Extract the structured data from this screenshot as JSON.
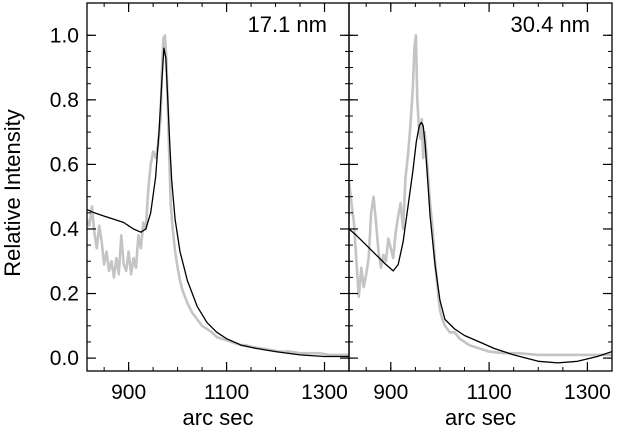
{
  "chart_data": [
    {
      "type": "line",
      "panel_label": "17.1 nm",
      "xlabel": "arc sec",
      "ylabel": "Relative Intensity",
      "xlim": [
        815,
        1350
      ],
      "ylim": [
        -0.04,
        1.1
      ],
      "x_ticks": [
        900,
        1100,
        1300
      ],
      "y_ticks": [
        0.0,
        0.2,
        0.4,
        0.6,
        0.8,
        1.0
      ],
      "y_tick_labels": [
        "0.0",
        "0.2",
        "0.4",
        "0.6",
        "0.8",
        "1.0"
      ],
      "x_tick_labels": [
        "900",
        "1100",
        "1300"
      ],
      "colors": {
        "observed": "#c4c4c4",
        "model": "#000000"
      },
      "series": [
        {
          "role": "observed",
          "x": [
            815,
            820,
            825,
            830,
            835,
            840,
            845,
            850,
            855,
            860,
            865,
            870,
            875,
            880,
            885,
            890,
            895,
            900,
            905,
            910,
            915,
            920,
            925,
            930,
            935,
            940,
            945,
            950,
            955,
            960,
            965,
            968,
            971,
            974,
            977,
            980,
            983,
            986,
            990,
            995,
            1000,
            1005,
            1010,
            1020,
            1030,
            1040,
            1050,
            1060,
            1070,
            1080,
            1090,
            1100,
            1110,
            1120,
            1130,
            1140,
            1150,
            1170,
            1190,
            1210,
            1230,
            1250,
            1270,
            1290,
            1310,
            1330,
            1350
          ],
          "y": [
            0.43,
            0.41,
            0.47,
            0.39,
            0.34,
            0.41,
            0.36,
            0.29,
            0.33,
            0.27,
            0.3,
            0.25,
            0.31,
            0.26,
            0.38,
            0.29,
            0.27,
            0.33,
            0.26,
            0.31,
            0.28,
            0.38,
            0.34,
            0.42,
            0.4,
            0.52,
            0.6,
            0.64,
            0.62,
            0.66,
            0.74,
            0.89,
            0.99,
            1.0,
            0.93,
            0.78,
            0.62,
            0.48,
            0.4,
            0.33,
            0.28,
            0.24,
            0.21,
            0.17,
            0.14,
            0.12,
            0.1,
            0.09,
            0.08,
            0.065,
            0.06,
            0.055,
            0.05,
            0.045,
            0.04,
            0.04,
            0.035,
            0.03,
            0.025,
            0.02,
            0.02,
            0.015,
            0.015,
            0.015,
            0.01,
            0.01,
            0.01
          ]
        },
        {
          "role": "model",
          "x": [
            815,
            830,
            850,
            870,
            890,
            910,
            925,
            935,
            945,
            955,
            962,
            968,
            972,
            976,
            980,
            984,
            988,
            995,
            1005,
            1020,
            1040,
            1060,
            1080,
            1100,
            1130,
            1160,
            1200,
            1250,
            1300,
            1350
          ],
          "y": [
            0.46,
            0.45,
            0.44,
            0.43,
            0.42,
            0.4,
            0.39,
            0.4,
            0.45,
            0.56,
            0.7,
            0.86,
            0.96,
            0.93,
            0.8,
            0.66,
            0.55,
            0.43,
            0.33,
            0.24,
            0.16,
            0.11,
            0.08,
            0.06,
            0.04,
            0.03,
            0.02,
            0.01,
            0.005,
            0.005
          ]
        }
      ]
    },
    {
      "type": "line",
      "panel_label": "30.4 nm",
      "xlabel": "arc sec",
      "ylabel": "",
      "xlim": [
        815,
        1350
      ],
      "ylim": [
        -0.04,
        1.1
      ],
      "x_ticks": [
        900,
        1100,
        1300
      ],
      "y_ticks": [
        0.0,
        0.2,
        0.4,
        0.6,
        0.8,
        1.0
      ],
      "x_tick_labels": [
        "900",
        "1100",
        "1300"
      ],
      "colors": {
        "observed": "#c4c4c4",
        "model": "#000000"
      },
      "series": [
        {
          "role": "observed",
          "x": [
            815,
            820,
            825,
            830,
            835,
            840,
            845,
            850,
            855,
            860,
            865,
            870,
            875,
            880,
            885,
            890,
            895,
            900,
            905,
            910,
            915,
            920,
            925,
            930,
            935,
            940,
            945,
            948,
            951,
            954,
            957,
            960,
            963,
            966,
            969,
            972,
            975,
            980,
            985,
            990,
            995,
            1000,
            1005,
            1010,
            1015,
            1020,
            1030,
            1040,
            1050,
            1060,
            1080,
            1100,
            1130,
            1160,
            1200,
            1250,
            1300,
            1350
          ],
          "y": [
            0.55,
            0.48,
            0.42,
            0.3,
            0.19,
            0.28,
            0.22,
            0.26,
            0.31,
            0.45,
            0.5,
            0.42,
            0.33,
            0.28,
            0.32,
            0.3,
            0.37,
            0.34,
            0.31,
            0.39,
            0.44,
            0.48,
            0.4,
            0.56,
            0.63,
            0.72,
            0.84,
            0.96,
            1.0,
            0.8,
            0.72,
            0.68,
            0.74,
            0.62,
            0.7,
            0.64,
            0.58,
            0.48,
            0.4,
            0.3,
            0.22,
            0.15,
            0.12,
            0.1,
            0.09,
            0.08,
            0.08,
            0.06,
            0.05,
            0.04,
            0.03,
            0.02,
            0.015,
            0.015,
            0.01,
            0.01,
            0.01,
            0.01
          ]
        },
        {
          "role": "model",
          "x": [
            815,
            830,
            850,
            870,
            890,
            905,
            915,
            925,
            935,
            945,
            952,
            958,
            962,
            966,
            970,
            975,
            980,
            990,
            1000,
            1010,
            1030,
            1050,
            1080,
            1110,
            1150,
            1200,
            1240,
            1280,
            1320,
            1350
          ],
          "y": [
            0.4,
            0.38,
            0.35,
            0.32,
            0.29,
            0.27,
            0.29,
            0.36,
            0.47,
            0.58,
            0.67,
            0.72,
            0.73,
            0.72,
            0.66,
            0.55,
            0.44,
            0.29,
            0.18,
            0.12,
            0.09,
            0.07,
            0.05,
            0.03,
            0.01,
            -0.01,
            -0.015,
            -0.01,
            0.005,
            0.02
          ]
        }
      ]
    }
  ]
}
